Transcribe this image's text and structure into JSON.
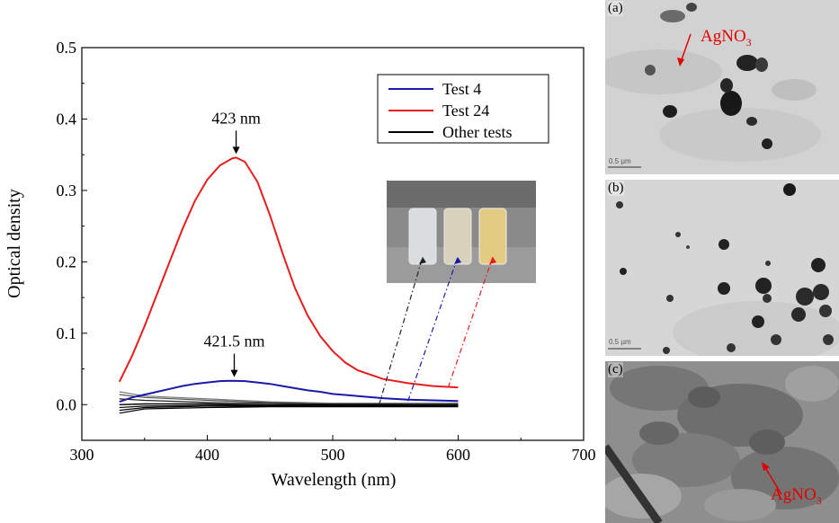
{
  "chart_data": {
    "type": "line",
    "xlabel": "Wavelength (nm)",
    "ylabel": "Optical density",
    "xlim": [
      300,
      700
    ],
    "ylim": [
      -0.05,
      0.5
    ],
    "x_ticks": [
      "300",
      "400",
      "500",
      "600",
      "700"
    ],
    "y_ticks": [
      "0.0",
      "0.1",
      "0.2",
      "0.3",
      "0.4",
      "0.5"
    ],
    "grid": false,
    "legend_position": "top-right",
    "series": [
      {
        "name": "Test 4",
        "color": "#1a1aa8",
        "x": [
          330,
          340,
          350,
          360,
          370,
          380,
          390,
          400,
          410,
          420,
          430,
          440,
          450,
          460,
          470,
          480,
          490,
          500,
          520,
          540,
          560,
          580,
          600
        ],
        "y": [
          0.004,
          0.01,
          0.014,
          0.018,
          0.022,
          0.026,
          0.029,
          0.031,
          0.033,
          0.0335,
          0.033,
          0.031,
          0.029,
          0.026,
          0.023,
          0.02,
          0.018,
          0.015,
          0.012,
          0.009,
          0.007,
          0.006,
          0.005
        ]
      },
      {
        "name": "Test 24",
        "color": "#e81c1c",
        "x": [
          330,
          340,
          350,
          360,
          370,
          380,
          390,
          400,
          410,
          420,
          423,
          430,
          440,
          450,
          460,
          470,
          480,
          490,
          500,
          510,
          520,
          540,
          560,
          580,
          600
        ],
        "y": [
          0.032,
          0.068,
          0.11,
          0.155,
          0.2,
          0.245,
          0.285,
          0.315,
          0.335,
          0.345,
          0.346,
          0.34,
          0.312,
          0.265,
          0.212,
          0.163,
          0.125,
          0.096,
          0.075,
          0.059,
          0.048,
          0.036,
          0.03,
          0.026,
          0.024
        ]
      },
      {
        "name": "Other tests",
        "color": "#000000",
        "x": [
          330,
          350,
          400,
          450,
          500,
          550,
          600
        ],
        "y": [
          0.0,
          0.001,
          0.001,
          0.0,
          0.0,
          0.0,
          0.0
        ]
      }
    ],
    "extra_curves": [
      {
        "color": "#000000",
        "x": [
          330,
          350,
          400,
          450,
          500,
          550,
          600
        ],
        "y": [
          -0.008,
          -0.004,
          -0.002,
          -0.002,
          -0.002,
          -0.002,
          -0.002
        ]
      },
      {
        "color": "#000000",
        "x": [
          330,
          350,
          400,
          450,
          500,
          550,
          600
        ],
        "y": [
          -0.012,
          -0.006,
          -0.004,
          -0.003,
          -0.003,
          -0.003,
          -0.003
        ]
      },
      {
        "color": "#555555",
        "x": [
          330,
          350,
          400,
          450,
          500,
          550,
          600
        ],
        "y": [
          0.014,
          0.01,
          0.006,
          0.003,
          0.002,
          0.002,
          0.002
        ]
      },
      {
        "color": "#222222",
        "x": [
          330,
          350,
          400,
          450,
          500,
          550,
          600
        ],
        "y": [
          0.008,
          0.006,
          0.003,
          0.002,
          0.001,
          0.001,
          0.001
        ]
      },
      {
        "color": "#777777",
        "x": [
          330,
          350,
          400,
          450,
          500,
          550,
          600
        ],
        "y": [
          0.018,
          0.012,
          0.008,
          0.004,
          0.002,
          0.002,
          0.001
        ]
      },
      {
        "color": "#111111",
        "x": [
          330,
          350,
          400,
          450,
          500,
          550,
          600
        ],
        "y": [
          -0.004,
          -0.002,
          -0.001,
          -0.001,
          -0.001,
          -0.001,
          -0.001
        ]
      }
    ],
    "annotations": [
      {
        "text": "423 nm",
        "x": 423,
        "y": 0.346
      },
      {
        "text": "421.5 nm",
        "x": 421.5,
        "y": 0.0335
      }
    ]
  },
  "panels": [
    {
      "label": "(a)",
      "annotation": "AgNO",
      "annotation_sub": "3",
      "scale": "0.5 µm"
    },
    {
      "label": "(b)",
      "scale": "0.5 µm"
    },
    {
      "label": "(c)",
      "annotation": "AgNO",
      "annotation_sub": "3"
    }
  ],
  "colors": {
    "accent_red": "#e00000",
    "test4_blue": "#1a1aa8",
    "test24_red": "#e81c1c"
  }
}
